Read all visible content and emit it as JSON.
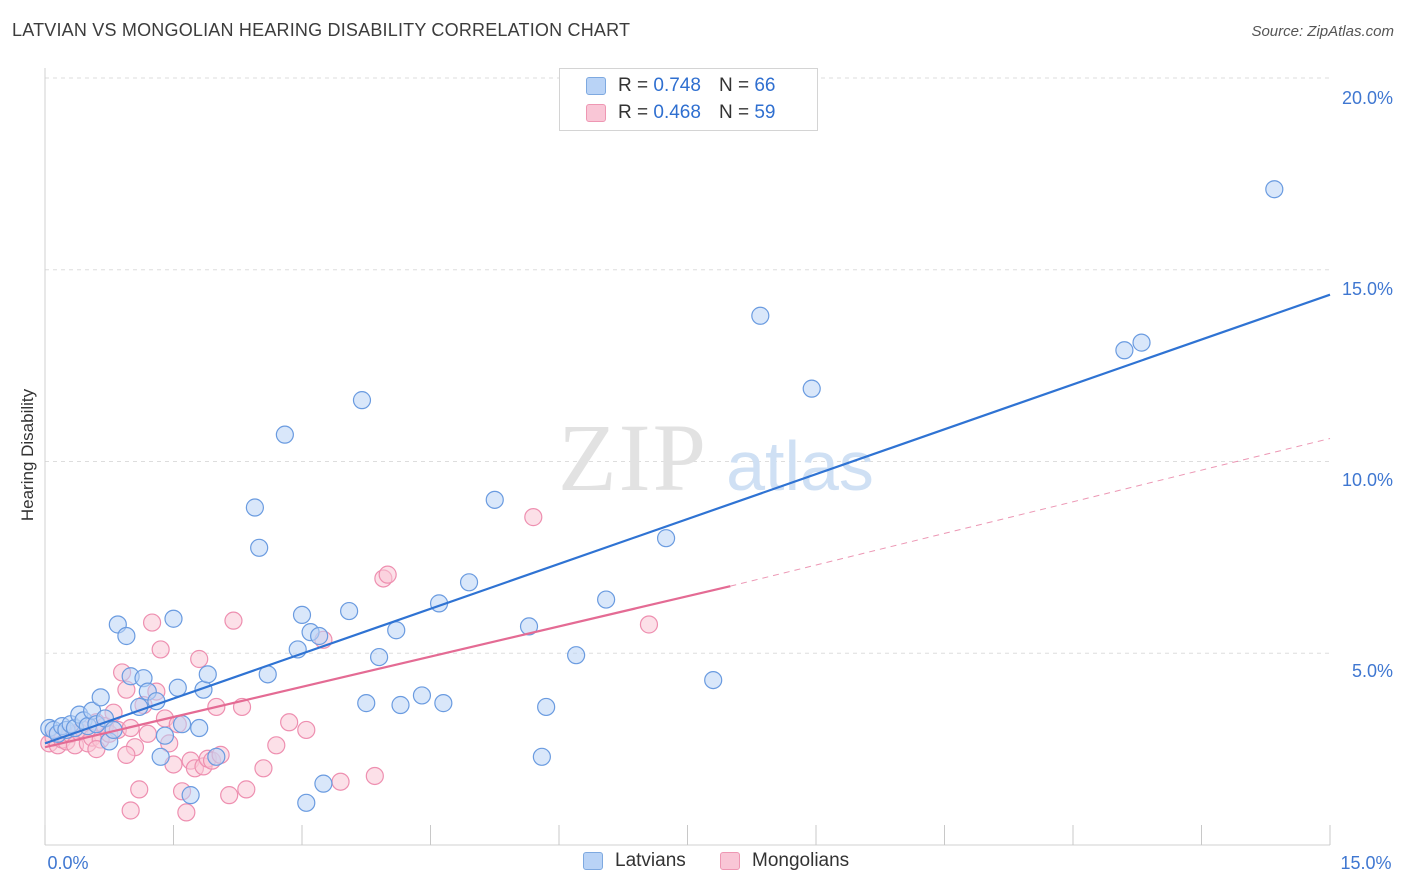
{
  "title": "LATVIAN VS MONGOLIAN HEARING DISABILITY CORRELATION CHART",
  "source": "Source: ZipAtlas.com",
  "watermark": {
    "zip": "ZIP",
    "atlas": "atlas"
  },
  "legend": {
    "latvians": {
      "r_label": "R =",
      "r_value": "0.748",
      "n_label": "N =",
      "n_value": "66"
    },
    "mongolians": {
      "r_label": "R =",
      "r_value": "0.468",
      "n_label": "N =",
      "n_value": "59"
    }
  },
  "colors": {
    "latvians_fill": "#b9d3f6",
    "latvians_stroke": "#6a9be0",
    "latvians_line": "#2f73d3",
    "mongolians_fill": "#f9c6d6",
    "mongolians_stroke": "#ee8fb0",
    "mongolians_line": "#e46b94",
    "tick_label": "#3f77d1",
    "grid": "#dddddd"
  },
  "chart_data": {
    "type": "scatter",
    "title": "LATVIAN VS MONGOLIAN HEARING DISABILITY CORRELATION CHART",
    "xlabel": "",
    "ylabel": "Hearing Disability",
    "xlim": [
      0,
      15
    ],
    "ylim": [
      0,
      20
    ],
    "x_tick_labels": [
      "0.0%",
      "15.0%"
    ],
    "y_ticks": [
      5,
      10,
      15,
      20
    ],
    "y_tick_labels": [
      "5.0%",
      "10.0%",
      "15.0%",
      "20.0%"
    ],
    "legend_position": "top-center",
    "bottom_legend": [
      "Latvians",
      "Mongolians"
    ],
    "series": [
      {
        "name": "Latvians",
        "r": 0.748,
        "n": 66,
        "trend": {
          "x": [
            0,
            15
          ],
          "y": [
            2.65,
            14.35
          ]
        },
        "points": [
          [
            0.05,
            3.05
          ],
          [
            0.1,
            3.0
          ],
          [
            0.15,
            2.9
          ],
          [
            0.2,
            3.1
          ],
          [
            0.25,
            3.0
          ],
          [
            0.3,
            3.15
          ],
          [
            0.35,
            3.05
          ],
          [
            0.4,
            3.4
          ],
          [
            0.45,
            3.25
          ],
          [
            0.5,
            3.1
          ],
          [
            0.55,
            3.5
          ],
          [
            0.6,
            3.15
          ],
          [
            0.65,
            3.85
          ],
          [
            0.7,
            3.3
          ],
          [
            0.75,
            2.7
          ],
          [
            0.8,
            3.0
          ],
          [
            0.85,
            5.75
          ],
          [
            0.95,
            5.45
          ],
          [
            1.0,
            4.4
          ],
          [
            1.1,
            3.6
          ],
          [
            1.15,
            4.35
          ],
          [
            1.2,
            4.0
          ],
          [
            1.3,
            3.75
          ],
          [
            1.35,
            2.3
          ],
          [
            1.4,
            2.85
          ],
          [
            1.5,
            5.9
          ],
          [
            1.55,
            4.1
          ],
          [
            1.6,
            3.15
          ],
          [
            1.7,
            1.3
          ],
          [
            1.8,
            3.05
          ],
          [
            1.85,
            4.05
          ],
          [
            1.9,
            4.45
          ],
          [
            2.0,
            2.3
          ],
          [
            2.45,
            8.8
          ],
          [
            2.5,
            7.75
          ],
          [
            2.6,
            4.45
          ],
          [
            2.8,
            10.7
          ],
          [
            2.95,
            5.1
          ],
          [
            3.0,
            6.0
          ],
          [
            3.05,
            1.1
          ],
          [
            3.1,
            5.55
          ],
          [
            3.2,
            5.45
          ],
          [
            3.25,
            1.6
          ],
          [
            3.55,
            6.1
          ],
          [
            3.7,
            11.6
          ],
          [
            3.75,
            3.7
          ],
          [
            3.9,
            4.9
          ],
          [
            4.1,
            5.6
          ],
          [
            4.15,
            3.65
          ],
          [
            4.4,
            3.9
          ],
          [
            4.6,
            6.3
          ],
          [
            4.65,
            3.7
          ],
          [
            4.95,
            6.85
          ],
          [
            5.25,
            9.0
          ],
          [
            5.65,
            5.7
          ],
          [
            5.8,
            2.3
          ],
          [
            5.85,
            3.6
          ],
          [
            6.2,
            4.95
          ],
          [
            6.55,
            6.4
          ],
          [
            7.25,
            8.0
          ],
          [
            7.8,
            4.3
          ],
          [
            8.35,
            13.8
          ],
          [
            8.95,
            11.9
          ],
          [
            12.6,
            12.9
          ],
          [
            12.8,
            13.1
          ],
          [
            14.35,
            17.1
          ]
        ]
      },
      {
        "name": "Mongolians",
        "r": 0.468,
        "n": 59,
        "trend": {
          "x": [
            0,
            8.0
          ],
          "y": [
            2.55,
            6.75
          ]
        },
        "trend_dashed": {
          "x": [
            8.0,
            15
          ],
          "y": [
            6.75,
            10.6
          ]
        },
        "points": [
          [
            0.05,
            2.65
          ],
          [
            0.1,
            2.8
          ],
          [
            0.15,
            2.6
          ],
          [
            0.2,
            2.75
          ],
          [
            0.25,
            2.7
          ],
          [
            0.3,
            2.9
          ],
          [
            0.35,
            2.6
          ],
          [
            0.4,
            2.95
          ],
          [
            0.45,
            3.0
          ],
          [
            0.5,
            2.65
          ],
          [
            0.55,
            2.8
          ],
          [
            0.6,
            3.2
          ],
          [
            0.65,
            2.75
          ],
          [
            0.7,
            3.1
          ],
          [
            0.75,
            2.9
          ],
          [
            0.8,
            3.45
          ],
          [
            0.85,
            3.0
          ],
          [
            0.9,
            4.5
          ],
          [
            0.95,
            4.05
          ],
          [
            1.0,
            3.05
          ],
          [
            1.05,
            2.55
          ],
          [
            1.1,
            1.45
          ],
          [
            1.15,
            3.65
          ],
          [
            1.2,
            2.9
          ],
          [
            1.25,
            5.8
          ],
          [
            1.3,
            4.0
          ],
          [
            1.35,
            5.1
          ],
          [
            1.4,
            3.3
          ],
          [
            1.45,
            2.65
          ],
          [
            1.5,
            2.1
          ],
          [
            1.55,
            3.15
          ],
          [
            1.6,
            1.4
          ],
          [
            1.65,
            0.85
          ],
          [
            1.7,
            2.2
          ],
          [
            1.75,
            2.0
          ],
          [
            1.8,
            4.85
          ],
          [
            1.85,
            2.05
          ],
          [
            1.9,
            2.25
          ],
          [
            1.95,
            2.2
          ],
          [
            2.0,
            3.6
          ],
          [
            2.05,
            2.35
          ],
          [
            2.15,
            1.3
          ],
          [
            2.2,
            5.85
          ],
          [
            2.3,
            3.6
          ],
          [
            2.35,
            1.45
          ],
          [
            2.55,
            2.0
          ],
          [
            2.7,
            2.6
          ],
          [
            2.85,
            3.2
          ],
          [
            3.05,
            3.0
          ],
          [
            3.25,
            5.35
          ],
          [
            3.45,
            1.65
          ],
          [
            3.85,
            1.8
          ],
          [
            3.95,
            6.95
          ],
          [
            4.0,
            7.05
          ],
          [
            5.7,
            8.55
          ],
          [
            7.05,
            5.75
          ],
          [
            0.6,
            2.5
          ],
          [
            1.0,
            0.9
          ],
          [
            0.95,
            2.35
          ]
        ]
      }
    ]
  },
  "axis": {
    "ylabel": "Hearing Disability",
    "x_min_label": "0.0%",
    "x_max_label": "15.0%",
    "y_labels": [
      "20.0%",
      "15.0%",
      "10.0%",
      "5.0%"
    ]
  }
}
